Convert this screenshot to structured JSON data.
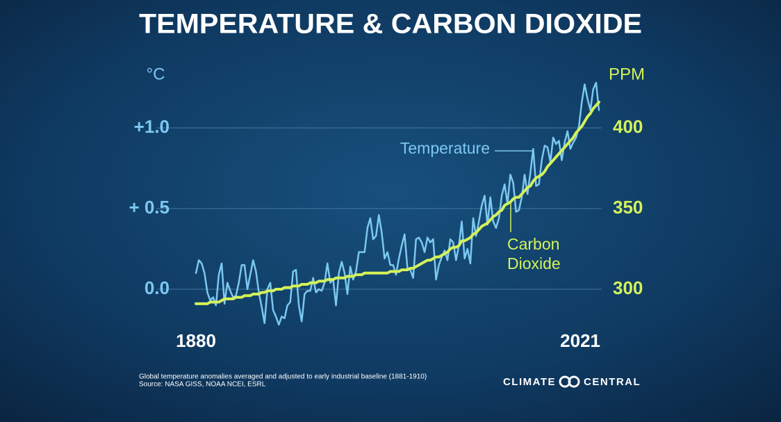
{
  "chart_data": {
    "type": "line",
    "title": "TEMPERATURE & CARBON DIOXIDE",
    "ylabel": "°C",
    "y2label": "PPM",
    "x": [
      1880,
      1881,
      1882,
      1883,
      1884,
      1885,
      1886,
      1887,
      1888,
      1889,
      1890,
      1891,
      1892,
      1893,
      1894,
      1895,
      1896,
      1897,
      1898,
      1899,
      1900,
      1901,
      1902,
      1903,
      1904,
      1905,
      1906,
      1907,
      1908,
      1909,
      1910,
      1911,
      1912,
      1913,
      1914,
      1915,
      1916,
      1917,
      1918,
      1919,
      1920,
      1921,
      1922,
      1923,
      1924,
      1925,
      1926,
      1927,
      1928,
      1929,
      1930,
      1931,
      1932,
      1933,
      1934,
      1935,
      1936,
      1937,
      1938,
      1939,
      1940,
      1941,
      1942,
      1943,
      1944,
      1945,
      1946,
      1947,
      1948,
      1949,
      1950,
      1951,
      1952,
      1953,
      1954,
      1955,
      1956,
      1957,
      1958,
      1959,
      1960,
      1961,
      1962,
      1963,
      1964,
      1965,
      1966,
      1967,
      1968,
      1969,
      1970,
      1971,
      1972,
      1973,
      1974,
      1975,
      1976,
      1977,
      1978,
      1979,
      1980,
      1981,
      1982,
      1983,
      1984,
      1985,
      1986,
      1987,
      1988,
      1989,
      1990,
      1991,
      1992,
      1993,
      1994,
      1995,
      1996,
      1997,
      1998,
      1999,
      2000,
      2001,
      2002,
      2003,
      2004,
      2005,
      2006,
      2007,
      2008,
      2009,
      2010,
      2011,
      2012,
      2013,
      2014,
      2015,
      2016,
      2017,
      2018,
      2019,
      2020,
      2021
    ],
    "series": [
      {
        "name": "Temperature",
        "color": "#7cc8f0",
        "values": [
          0.1,
          0.18,
          0.16,
          0.1,
          -0.02,
          -0.07,
          -0.05,
          -0.1,
          0.09,
          0.16,
          -0.09,
          0.04,
          -0.01,
          -0.05,
          -0.04,
          0.04,
          0.15,
          0.15,
          0.0,
          0.09,
          0.18,
          0.11,
          -0.02,
          -0.11,
          -0.21,
          0.0,
          0.04,
          -0.13,
          -0.17,
          -0.22,
          -0.17,
          -0.18,
          -0.1,
          -0.08,
          0.11,
          0.12,
          -0.1,
          -0.2,
          -0.03,
          -0.01,
          -0.01,
          0.07,
          -0.02,
          0.0,
          -0.01,
          0.04,
          0.16,
          0.04,
          0.06,
          -0.1,
          0.1,
          0.17,
          0.1,
          -0.03,
          0.14,
          0.06,
          0.11,
          0.23,
          0.23,
          0.23,
          0.38,
          0.44,
          0.31,
          0.33,
          0.46,
          0.35,
          0.19,
          0.23,
          0.15,
          0.15,
          0.09,
          0.19,
          0.27,
          0.34,
          0.13,
          0.12,
          0.07,
          0.31,
          0.32,
          0.29,
          0.23,
          0.32,
          0.29,
          0.31,
          0.06,
          0.15,
          0.2,
          0.24,
          0.18,
          0.31,
          0.29,
          0.18,
          0.27,
          0.42,
          0.19,
          0.25,
          0.16,
          0.44,
          0.33,
          0.42,
          0.52,
          0.58,
          0.4,
          0.57,
          0.42,
          0.38,
          0.44,
          0.58,
          0.65,
          0.53,
          0.71,
          0.66,
          0.48,
          0.49,
          0.57,
          0.71,
          0.59,
          0.72,
          0.87,
          0.64,
          0.65,
          0.8,
          0.89,
          0.88,
          0.79,
          0.94,
          0.9,
          0.92,
          0.8,
          0.91,
          0.98,
          0.87,
          0.91,
          0.94,
          1.01,
          1.16,
          1.27,
          1.18,
          1.11,
          1.24,
          1.28,
          1.11
        ]
      },
      {
        "name": "Carbon Dioxide",
        "color": "#d4f25a",
        "axis": "y2",
        "values": [
          291,
          291,
          291,
          291,
          291,
          292,
          292,
          292,
          292,
          293,
          294,
          294,
          294,
          294,
          295,
          295,
          295,
          296,
          296,
          296,
          297,
          297,
          297,
          298,
          298,
          299,
          299,
          299,
          300,
          300,
          300,
          301,
          301,
          301,
          302,
          302,
          302,
          303,
          303,
          303,
          304,
          304,
          304,
          305,
          305,
          305,
          306,
          306,
          306,
          307,
          307,
          307,
          307,
          308,
          308,
          308,
          309,
          309,
          309,
          310,
          310,
          310,
          310,
          310,
          310,
          310,
          310,
          310,
          311,
          311,
          311,
          311,
          312,
          312,
          312,
          313,
          313,
          314,
          315,
          316,
          317,
          318,
          318,
          319,
          320,
          320,
          321,
          322,
          323,
          325,
          326,
          326,
          327,
          330,
          330,
          331,
          332,
          334,
          335,
          337,
          339,
          340,
          341,
          343,
          345,
          346,
          348,
          349,
          352,
          353,
          354,
          356,
          357,
          357,
          359,
          361,
          363,
          364,
          367,
          369,
          370,
          371,
          373,
          376,
          378,
          380,
          382,
          384,
          386,
          388,
          390,
          392,
          394,
          397,
          399,
          401,
          404,
          407,
          409,
          412,
          414,
          416
        ]
      }
    ],
    "xlim": [
      1880,
      2021
    ],
    "xticks": [
      1880,
      2021
    ],
    "ylim": [
      -0.25,
      1.3
    ],
    "yticks": [
      {
        "value": 0,
        "label": "0.0"
      },
      {
        "value": 0.5,
        "label": "+ 0.5"
      },
      {
        "value": 1,
        "label": "+1.0"
      }
    ],
    "y2lim": [
      275,
      430
    ],
    "y2ticks": [
      300,
      350,
      400
    ],
    "grid": true,
    "notes": "Global temperature anomalies averaged and adjusted to early industrial baseline (1881-1910)",
    "source": "Source: NASA GISS, NOAA NCEI, ESRL",
    "logo_text": {
      "left": "CLIMATE",
      "right": "CENTRAL"
    }
  }
}
